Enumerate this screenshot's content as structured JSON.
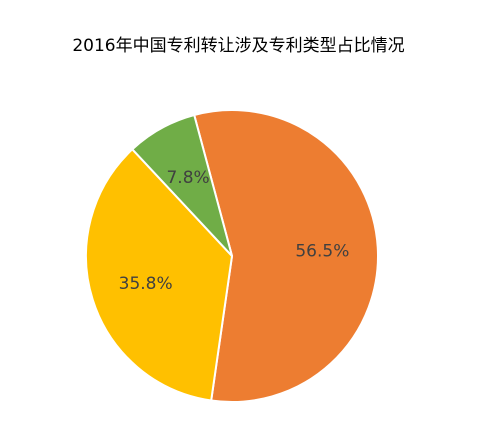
{
  "chart_data": {
    "type": "pie",
    "title": "2016年中国专利转让涉及专利类型占比情况",
    "categories": [
      "",
      "",
      ""
    ],
    "values": [
      56.5,
      35.8,
      7.8
    ],
    "labels": [
      "56.5%",
      "35.8%",
      "7.8%"
    ],
    "colors": [
      "#ED7D31",
      "#FFC000",
      "#70AD47"
    ],
    "start_angle_deg": -15,
    "direction": "clockwise",
    "legend": "none"
  }
}
